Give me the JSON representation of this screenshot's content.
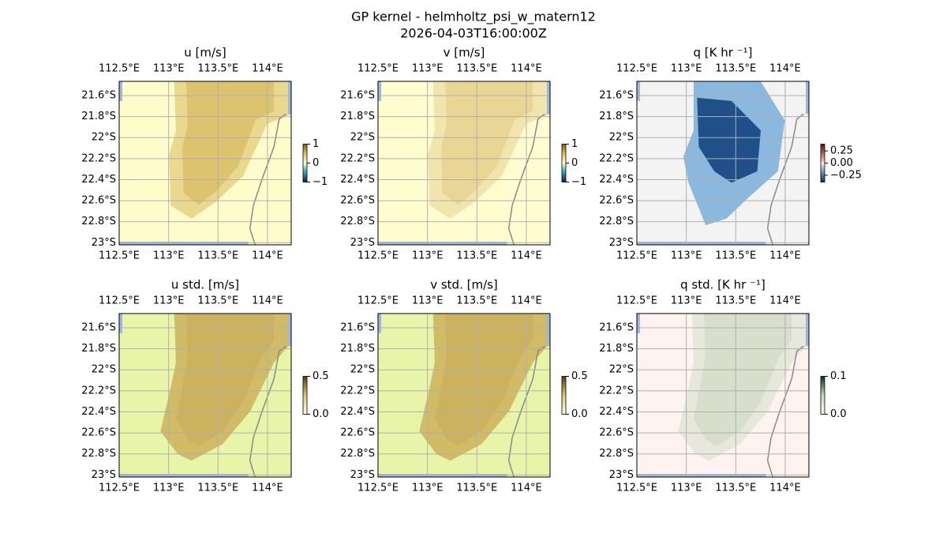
{
  "title": "GP kernel - helmholtz_psi_w_matern12",
  "subtitle": "2026-04-03T16:00:00Z",
  "map": {
    "xlim": [
      112.5,
      114.24
    ],
    "ylim": [
      -23.02,
      -21.465
    ],
    "xticks": [
      {
        "value": 112.5,
        "label": "112.5°E"
      },
      {
        "value": 113,
        "label": "113°E"
      },
      {
        "value": 113.5,
        "label": "113.5°E"
      },
      {
        "value": 114,
        "label": "114°E"
      }
    ],
    "yticks": [
      {
        "value": -21.6,
        "label": "21.6°S"
      },
      {
        "value": -21.8,
        "label": "21.8°S"
      },
      {
        "value": -22,
        "label": "22°S"
      },
      {
        "value": -22.2,
        "label": "22.2°S"
      },
      {
        "value": -22.4,
        "label": "22.4°S"
      },
      {
        "value": -22.6,
        "label": "22.6°S"
      },
      {
        "value": -22.8,
        "label": "22.8°S"
      },
      {
        "value": -23,
        "label": "23°S"
      }
    ]
  },
  "panels": [
    {
      "title": "u [m/s]",
      "colorbar": {
        "lim": [
          -1,
          1
        ],
        "ticks": [
          1,
          0,
          {
            "value": -1,
            "label": "−1"
          }
        ]
      }
    },
    {
      "title": "v [m/s]",
      "colorbar": {
        "lim": [
          -1,
          1
        ],
        "ticks": [
          1,
          0,
          {
            "value": -1,
            "label": "−1"
          }
        ]
      }
    },
    {
      "title": "q [K hr ⁻¹]",
      "colorbar": {
        "lim": [
          -0.39,
          0.39
        ],
        "ticks": [
          0.25,
          {
            "value": 0,
            "label": "0.00"
          },
          {
            "value": -0.25,
            "label": "−0.25"
          }
        ]
      }
    },
    {
      "title": "u std. [m/s]",
      "colorbar": {
        "lim": [
          0,
          0.5
        ],
        "ticks": [
          0.5,
          {
            "value": 0,
            "label": "0.0"
          }
        ]
      }
    },
    {
      "title": "v std. [m/s]",
      "colorbar": {
        "lim": [
          0,
          0.5
        ],
        "ticks": [
          0.5,
          {
            "value": 0,
            "label": "0.0"
          }
        ]
      }
    },
    {
      "title": "q std. [K hr ⁻¹]",
      "colorbar": {
        "lim": [
          0,
          0.1
        ],
        "ticks": [
          0.1,
          {
            "value": 0,
            "label": "0.0"
          }
        ]
      }
    }
  ]
}
